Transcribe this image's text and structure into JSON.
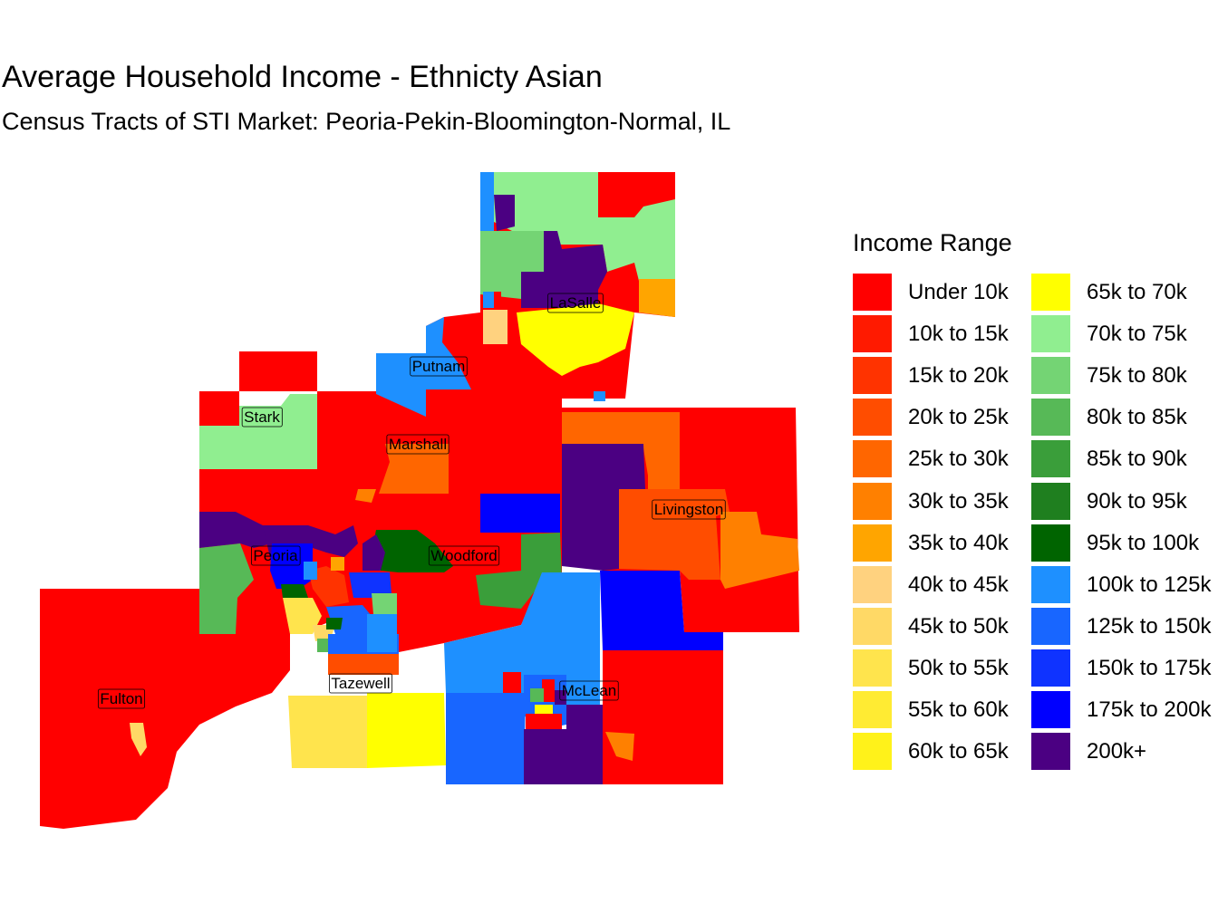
{
  "title": "Average Household Income - Ethnicty Asian",
  "subtitle": "Census Tracts of STI Market: Peoria-Pekin-Bloomington-Normal, IL",
  "legend": {
    "title": "Income Range",
    "items": [
      {
        "label": "Under 10k",
        "color": "#ff0000"
      },
      {
        "label": "10k to 15k",
        "color": "#ff1a00"
      },
      {
        "label": "15k to 20k",
        "color": "#ff3300"
      },
      {
        "label": "20k to 25k",
        "color": "#ff4d00"
      },
      {
        "label": "25k to 30k",
        "color": "#ff6600"
      },
      {
        "label": "30k to 35k",
        "color": "#ff8000"
      },
      {
        "label": "35k to 40k",
        "color": "#ffa500"
      },
      {
        "label": "40k to 45k",
        "color": "#ffd27f"
      },
      {
        "label": "45k to 50k",
        "color": "#ffd966"
      },
      {
        "label": "50k to 55k",
        "color": "#ffe44d"
      },
      {
        "label": "55k to 60k",
        "color": "#ffeb33"
      },
      {
        "label": "60k to 65k",
        "color": "#fff21a"
      },
      {
        "label": "65k to 70k",
        "color": "#ffff00"
      },
      {
        "label": "70k to 75k",
        "color": "#90ee90"
      },
      {
        "label": "75k to 80k",
        "color": "#74d474"
      },
      {
        "label": "80k to 85k",
        "color": "#57b957"
      },
      {
        "label": "85k to 90k",
        "color": "#3a9e3a"
      },
      {
        "label": "90k to 95k",
        "color": "#1f7f1f"
      },
      {
        "label": "95k to 100k",
        "color": "#006400"
      },
      {
        "label": "100k to 125k",
        "color": "#1e90ff"
      },
      {
        "label": "125k to 150k",
        "color": "#1866ff"
      },
      {
        "label": "150k to 175k",
        "color": "#0f33ff"
      },
      {
        "label": "175k to 200k",
        "color": "#0000ff"
      },
      {
        "label": "200k+",
        "color": "#4b0082"
      }
    ]
  },
  "counties": [
    "LaSalle",
    "Putnam",
    "Stark",
    "Marshall",
    "Livingston",
    "Peoria",
    "Woodford",
    "Tazewell",
    "McLean",
    "Fulton"
  ]
}
